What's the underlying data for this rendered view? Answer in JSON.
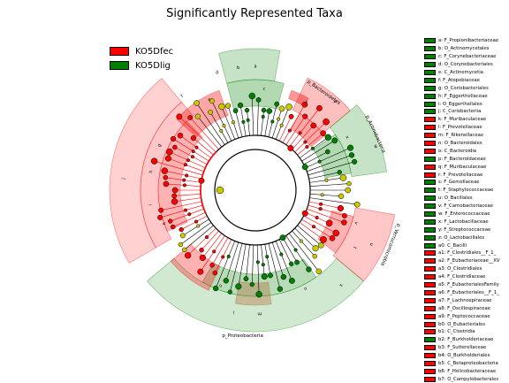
{
  "title": "Significantly Represented Taxa",
  "colors": {
    "KO5Dfec": "#ff0000",
    "KO5Dlig": "#008000",
    "neutral": "#c8c800"
  },
  "legend": [
    {
      "label": "KO5Dfec",
      "group": "KO5Dfec"
    },
    {
      "label": "KO5Dlig",
      "group": "KO5Dlig"
    }
  ],
  "taxa": [
    {
      "label": "a: F_Propionibacteriaceae",
      "group": "KO5Dlig"
    },
    {
      "label": "b: O_Actinomycetales",
      "group": "KO5Dlig"
    },
    {
      "label": "c: F_Corynebacteriaceae",
      "group": "KO5Dlig"
    },
    {
      "label": "d: O_Corynebacteriales",
      "group": "KO5Dlig"
    },
    {
      "label": "e: C_Actinomycetia",
      "group": "KO5Dlig"
    },
    {
      "label": "f: F_Atopobiaceae",
      "group": "KO5Dlig"
    },
    {
      "label": "g: O_Coriobacteriales",
      "group": "KO5Dlig"
    },
    {
      "label": "h: F_Eggerthellaceae",
      "group": "KO5Dlig"
    },
    {
      "label": "i: O_Eggerthellales",
      "group": "KO5Dlig"
    },
    {
      "label": "j: C_Coriobacteriia",
      "group": "KO5Dlig"
    },
    {
      "label": "k: F_Muribaculaceae",
      "group": "KO5Dfec"
    },
    {
      "label": "l: F_Prevotellaceae",
      "group": "KO5Dfec"
    },
    {
      "label": "m: F_Rikenellaceae",
      "group": "KO5Dfec"
    },
    {
      "label": "n: O_Bacteroidales",
      "group": "KO5Dfec"
    },
    {
      "label": "o: C_Bacteroidia",
      "group": "KO5Dfec"
    },
    {
      "label": "p: F_Bacteroidaceae",
      "group": "KO5Dlig"
    },
    {
      "label": "q: F_Muribaculaceae",
      "group": "KO5Dfec"
    },
    {
      "label": "r: F_Prevotellaceae",
      "group": "KO5Dfec"
    },
    {
      "label": "s: F_Gemellaceae",
      "group": "KO5Dlig"
    },
    {
      "label": "t: F_Staphylococcaceae",
      "group": "KO5Dlig"
    },
    {
      "label": "u: O_Bacillales",
      "group": "KO5Dlig"
    },
    {
      "label": "v: F_Carnobacteriaceae",
      "group": "KO5Dlig"
    },
    {
      "label": "w: F_Enterococcaceae",
      "group": "KO5Dlig"
    },
    {
      "label": "x: F_Lactobacillaceae",
      "group": "KO5Dlig"
    },
    {
      "label": "y: F_Streptococcaceae",
      "group": "KO5Dlig"
    },
    {
      "label": "z: O_Lactobacillales",
      "group": "KO5Dlig"
    },
    {
      "label": "a0: C_Bacilli",
      "group": "KO5Dlig"
    },
    {
      "label": "a1: F_Clostridiales__F_1_",
      "group": "KO5Dfec"
    },
    {
      "label": "a2: F_Eubacteriaceae__XV",
      "group": "KO5Dfec"
    },
    {
      "label": "a3: O_Clostridiales",
      "group": "KO5Dfec"
    },
    {
      "label": "a4: F_Clostridiaceae",
      "group": "KO5Dfec"
    },
    {
      "label": "a5: F_EubacterialesFamily",
      "group": "KO5Dfec"
    },
    {
      "label": "a6: F_Eubacteriales__F_1_",
      "group": "KO5Dfec"
    },
    {
      "label": "a7: F_Lachnospiraceae",
      "group": "KO5Dfec"
    },
    {
      "label": "a8: F_Oscillospiraceae",
      "group": "KO5Dfec"
    },
    {
      "label": "a9: F_Peptococcaceae",
      "group": "KO5Dfec"
    },
    {
      "label": "b0: O_Eubacteriales",
      "group": "KO5Dfec"
    },
    {
      "label": "b1: C_Clostridia",
      "group": "KO5Dfec"
    },
    {
      "label": "b2: F_Burkholderiaceae",
      "group": "KO5Dlig"
    },
    {
      "label": "b3: F_Sutterellaceae",
      "group": "KO5Dfec"
    },
    {
      "label": "b4: O_Burkholderiales",
      "group": "KO5Dfec"
    },
    {
      "label": "b5: C_Betaproteobacteria",
      "group": "KO5Dfec"
    },
    {
      "label": "b6: F_Helicobacteraceae",
      "group": "KO5Dfec"
    },
    {
      "label": "b7: O_Campylobacterales",
      "group": "KO5Dfec"
    }
  ],
  "clade_labels": [
    "p_Bacteroidetes",
    "p_Actinobacteria",
    "p_Verrucomicrobia",
    "p_Proteobacteria",
    "a",
    "b",
    "c",
    "d",
    "e",
    "f",
    "g",
    "h",
    "i",
    "j",
    "k",
    "l",
    "m",
    "n",
    "o",
    "s",
    "t",
    "u",
    "v",
    "w",
    "x",
    "y",
    "z",
    "a0",
    "a1",
    "a2",
    "a3",
    "a4",
    "a5",
    "a6",
    "a7",
    "a8",
    "a9",
    "b0",
    "b1",
    "b2",
    "b3",
    "b4",
    "b5",
    "b6",
    "b7"
  ]
}
